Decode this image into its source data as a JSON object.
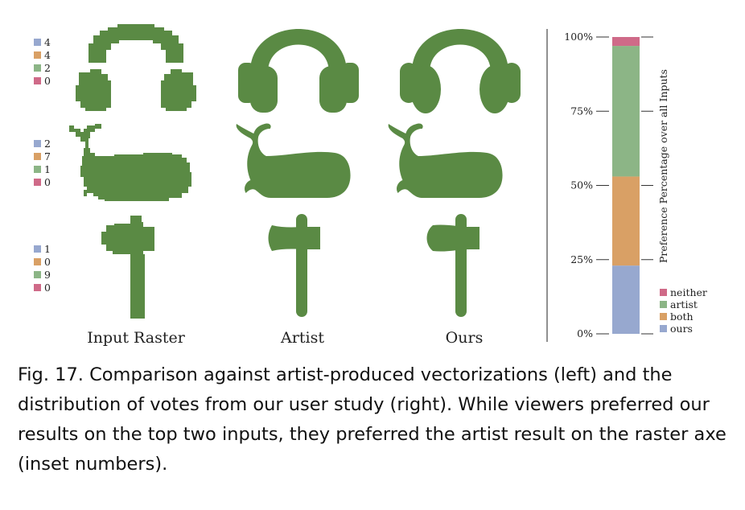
{
  "figure": {
    "column_labels": [
      "Input Raster",
      "Artist",
      "Ours"
    ],
    "shape_color": "#5a8a44",
    "vote_colors": {
      "ours": "#97a8cf",
      "both": "#d9a065",
      "artist": "#8cb586",
      "neither": "#cf6a88"
    },
    "vote_groups": [
      {
        "shape": "headphones",
        "counts": [
          "4",
          "4",
          "2",
          "0"
        ]
      },
      {
        "shape": "whale",
        "counts": [
          "2",
          "7",
          "1",
          "0"
        ]
      },
      {
        "shape": "axe",
        "counts": [
          "1",
          "0",
          "9",
          "0"
        ]
      }
    ]
  },
  "chart_data": {
    "type": "bar",
    "stacked": true,
    "categories": [
      ""
    ],
    "series": [
      {
        "name": "ours",
        "values": [
          23
        ]
      },
      {
        "name": "both",
        "values": [
          30
        ]
      },
      {
        "name": "artist",
        "values": [
          44
        ]
      },
      {
        "name": "neither",
        "values": [
          3
        ]
      }
    ],
    "ylabel": "Preference Percentage over all Inputs",
    "ylim": [
      0,
      100
    ],
    "yticks": [
      "0%",
      "25%",
      "50%",
      "75%",
      "100%"
    ],
    "legend_position": "bottom-right",
    "legend_order": [
      "neither",
      "artist",
      "both",
      "ours"
    ],
    "colors": {
      "ours": "#97a8cf",
      "both": "#d9a065",
      "artist": "#8cb586",
      "neither": "#cf6a88"
    }
  },
  "caption": {
    "text": "Fig. 17.  Comparison against artist-produced vectorizations (left) and the distribution of votes from our user study (right). While viewers preferred our results on the top two inputs, they preferred the artist result on the raster axe (inset numbers)."
  }
}
